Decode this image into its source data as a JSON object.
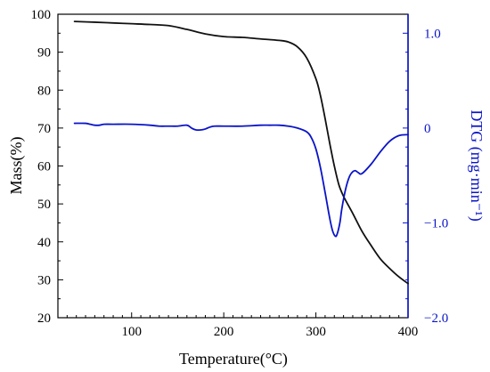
{
  "chart_data": {
    "type": "line",
    "xlabel": "Temperature(°C)",
    "ylabel": "Mass(%)",
    "y2label": "DTG (mg·min⁻¹)",
    "xlim": [
      20,
      400
    ],
    "ylim": [
      20,
      100
    ],
    "y2lim": [
      -2.0,
      1.2
    ],
    "x_ticks": [
      100,
      200,
      300,
      400
    ],
    "x_tick_labels": [
      "100",
      "200",
      "300",
      "400"
    ],
    "y_ticks": [
      20,
      30,
      40,
      50,
      60,
      70,
      80,
      90,
      100
    ],
    "y_tick_labels": [
      "20",
      "30",
      "40",
      "50",
      "60",
      "70",
      "80",
      "90",
      "100"
    ],
    "y2_ticks": [
      1.0,
      0,
      -1.0,
      -2.0
    ],
    "y2_tick_labels": [
      "1.0",
      "0",
      "−1.0",
      "−2.0"
    ],
    "grid": false,
    "series": [
      {
        "axis": "left",
        "color": "#111111",
        "x": [
          38,
          60,
          80,
          100,
          120,
          140,
          160,
          180,
          200,
          220,
          240,
          260,
          270,
          280,
          290,
          300,
          305,
          310,
          315,
          320,
          325,
          330,
          340,
          350,
          360,
          370,
          380,
          390,
          400
        ],
        "y": [
          98.1,
          97.9,
          97.7,
          97.5,
          97.3,
          97.0,
          96.0,
          94.8,
          94.1,
          93.9,
          93.5,
          93.1,
          92.7,
          91.4,
          88.5,
          83.0,
          78.5,
          72.5,
          66.0,
          60.0,
          55.0,
          52.0,
          47.5,
          42.8,
          39.0,
          35.5,
          33.0,
          30.8,
          29.0
        ]
      },
      {
        "axis": "right",
        "color": "#0A14C8",
        "x": [
          38,
          50,
          55,
          60,
          65,
          70,
          80,
          100,
          120,
          130,
          140,
          150,
          160,
          165,
          170,
          175,
          180,
          185,
          190,
          200,
          220,
          240,
          250,
          260,
          270,
          280,
          290,
          295,
          300,
          305,
          310,
          315,
          318,
          321,
          323,
          326,
          328,
          331,
          334,
          337,
          340,
          343,
          346,
          350,
          360,
          370,
          380,
          390,
          400
        ],
        "y": [
          0.05,
          0.05,
          0.04,
          0.03,
          0.03,
          0.04,
          0.04,
          0.04,
          0.03,
          0.02,
          0.02,
          0.02,
          0.03,
          0.0,
          -0.02,
          -0.02,
          -0.01,
          0.01,
          0.02,
          0.02,
          0.02,
          0.03,
          0.03,
          0.03,
          0.02,
          0.0,
          -0.04,
          -0.1,
          -0.22,
          -0.42,
          -0.68,
          -0.95,
          -1.08,
          -1.14,
          -1.12,
          -1.0,
          -0.86,
          -0.7,
          -0.58,
          -0.5,
          -0.46,
          -0.45,
          -0.47,
          -0.48,
          -0.38,
          -0.25,
          -0.14,
          -0.08,
          -0.07
        ]
      }
    ]
  }
}
